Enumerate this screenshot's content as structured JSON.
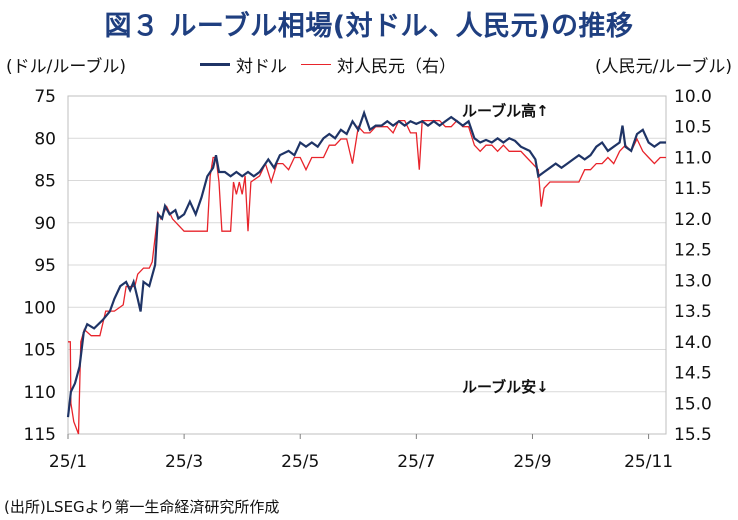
{
  "title": "図３ ルーブル相場(対ドル、人民元)の推移",
  "source": "(出所)LSEGより第一生命経済研究所作成",
  "chart_data": {
    "type": "line",
    "title": "図３ ルーブル相場(対ドル、人民元)の推移",
    "left_axis_label": "(ドル/ルーブル)",
    "right_axis_label": "(人民元/ルーブル)",
    "left_axis": {
      "min": 75,
      "max": 115,
      "step": 5,
      "inverted": true,
      "ticks": [
        "75",
        "80",
        "85",
        "90",
        "95",
        "100",
        "105",
        "110",
        "115"
      ]
    },
    "right_axis": {
      "min": 10.0,
      "max": 15.5,
      "step": 0.5,
      "inverted": true,
      "ticks": [
        "10.0",
        "10.5",
        "11.0",
        "11.5",
        "12.0",
        "12.5",
        "13.0",
        "13.5",
        "14.0",
        "14.5",
        "15.0",
        "15.5"
      ]
    },
    "x_axis": {
      "min": 0,
      "max": 10.3,
      "ticks": [
        {
          "pos": 0,
          "label": "25/1"
        },
        {
          "pos": 2,
          "label": "25/3"
        },
        {
          "pos": 4,
          "label": "25/5"
        },
        {
          "pos": 6,
          "label": "25/7"
        },
        {
          "pos": 8,
          "label": "25/9"
        },
        {
          "pos": 10,
          "label": "25/11"
        }
      ]
    },
    "annotations": [
      {
        "text": "ルーブル高↑"
      },
      {
        "text": "ルーブル安↓"
      }
    ],
    "series": [
      {
        "name": "対ドル",
        "axis": "left",
        "color": "#1f3466",
        "points": [
          [
            0.0,
            113
          ],
          [
            0.05,
            110
          ],
          [
            0.12,
            109
          ],
          [
            0.2,
            107
          ],
          [
            0.27,
            103
          ],
          [
            0.33,
            102
          ],
          [
            0.45,
            102.5
          ],
          [
            0.6,
            101.5
          ],
          [
            0.72,
            100.5
          ],
          [
            0.8,
            99
          ],
          [
            0.9,
            97.5
          ],
          [
            1.0,
            97
          ],
          [
            1.07,
            98
          ],
          [
            1.13,
            97
          ],
          [
            1.2,
            99
          ],
          [
            1.25,
            100.5
          ],
          [
            1.3,
            97
          ],
          [
            1.4,
            97.5
          ],
          [
            1.5,
            95
          ],
          [
            1.55,
            89
          ],
          [
            1.62,
            89.5
          ],
          [
            1.67,
            88
          ],
          [
            1.75,
            89
          ],
          [
            1.85,
            88.5
          ],
          [
            1.9,
            89.5
          ],
          [
            2.0,
            89
          ],
          [
            2.1,
            87.5
          ],
          [
            2.2,
            89
          ],
          [
            2.3,
            87
          ],
          [
            2.4,
            84.5
          ],
          [
            2.5,
            83.5
          ],
          [
            2.55,
            82
          ],
          [
            2.6,
            84
          ],
          [
            2.7,
            84
          ],
          [
            2.8,
            84.5
          ],
          [
            2.9,
            84
          ],
          [
            3.0,
            84.5
          ],
          [
            3.1,
            84
          ],
          [
            3.2,
            84.5
          ],
          [
            3.3,
            84
          ],
          [
            3.45,
            82.5
          ],
          [
            3.55,
            83.5
          ],
          [
            3.65,
            82
          ],
          [
            3.8,
            81.5
          ],
          [
            3.9,
            82
          ],
          [
            4.0,
            80.5
          ],
          [
            4.1,
            81
          ],
          [
            4.2,
            80.5
          ],
          [
            4.3,
            81
          ],
          [
            4.4,
            80
          ],
          [
            4.5,
            79.5
          ],
          [
            4.6,
            80
          ],
          [
            4.7,
            79
          ],
          [
            4.8,
            79.5
          ],
          [
            4.9,
            78
          ],
          [
            5.0,
            79
          ],
          [
            5.1,
            77
          ],
          [
            5.2,
            79
          ],
          [
            5.3,
            78.5
          ],
          [
            5.4,
            78.5
          ],
          [
            5.5,
            78
          ],
          [
            5.6,
            78.5
          ],
          [
            5.7,
            78
          ],
          [
            5.8,
            78.5
          ],
          [
            5.9,
            78
          ],
          [
            6.0,
            78.3
          ],
          [
            6.1,
            78
          ],
          [
            6.2,
            78.5
          ],
          [
            6.3,
            78
          ],
          [
            6.4,
            78.5
          ],
          [
            6.5,
            78
          ],
          [
            6.6,
            77.5
          ],
          [
            6.7,
            78
          ],
          [
            6.8,
            78.5
          ],
          [
            6.9,
            78
          ],
          [
            7.0,
            80
          ],
          [
            7.1,
            80.5
          ],
          [
            7.2,
            80.2
          ],
          [
            7.3,
            80.5
          ],
          [
            7.4,
            80
          ],
          [
            7.5,
            80.5
          ],
          [
            7.6,
            80
          ],
          [
            7.7,
            80.3
          ],
          [
            7.8,
            81
          ],
          [
            7.95,
            81.5
          ],
          [
            8.05,
            82.5
          ],
          [
            8.1,
            84.5
          ],
          [
            8.2,
            84
          ],
          [
            8.3,
            83.5
          ],
          [
            8.4,
            83
          ],
          [
            8.5,
            83.5
          ],
          [
            8.6,
            83
          ],
          [
            8.7,
            82.5
          ],
          [
            8.8,
            82
          ],
          [
            8.9,
            82.5
          ],
          [
            9.0,
            82
          ],
          [
            9.1,
            81
          ],
          [
            9.2,
            80.5
          ],
          [
            9.3,
            81.5
          ],
          [
            9.4,
            81
          ],
          [
            9.5,
            80.5
          ],
          [
            9.55,
            78.5
          ],
          [
            9.6,
            81
          ],
          [
            9.7,
            81.5
          ],
          [
            9.8,
            79.5
          ],
          [
            9.9,
            79
          ],
          [
            10.0,
            80.5
          ],
          [
            10.1,
            81
          ],
          [
            10.2,
            80.5
          ],
          [
            10.3,
            80.5
          ]
        ]
      },
      {
        "name": "対人民元（右）",
        "axis": "right",
        "color": "#e8242b",
        "points": [
          [
            0.0,
            14.0
          ],
          [
            0.04,
            14.0
          ],
          [
            0.05,
            15.0
          ],
          [
            0.1,
            15.3
          ],
          [
            0.18,
            15.5
          ],
          [
            0.22,
            14.0
          ],
          [
            0.28,
            13.8
          ],
          [
            0.4,
            13.9
          ],
          [
            0.55,
            13.9
          ],
          [
            0.65,
            13.5
          ],
          [
            0.8,
            13.5
          ],
          [
            0.95,
            13.4
          ],
          [
            1.0,
            13.1
          ],
          [
            1.05,
            13.1
          ],
          [
            1.15,
            13.1
          ],
          [
            1.2,
            12.9
          ],
          [
            1.3,
            12.8
          ],
          [
            1.4,
            12.8
          ],
          [
            1.45,
            12.7
          ],
          [
            1.5,
            12.3
          ],
          [
            1.55,
            11.9
          ],
          [
            1.6,
            12.0
          ],
          [
            1.7,
            11.8
          ],
          [
            1.8,
            12.0
          ],
          [
            1.9,
            12.1
          ],
          [
            2.0,
            12.2
          ],
          [
            2.1,
            12.2
          ],
          [
            2.2,
            12.2
          ],
          [
            2.3,
            12.2
          ],
          [
            2.4,
            12.2
          ],
          [
            2.45,
            11.3
          ],
          [
            2.5,
            11.0
          ],
          [
            2.55,
            11.0
          ],
          [
            2.6,
            11.4
          ],
          [
            2.65,
            12.2
          ],
          [
            2.7,
            12.2
          ],
          [
            2.8,
            12.2
          ],
          [
            2.85,
            11.4
          ],
          [
            2.9,
            11.6
          ],
          [
            2.95,
            11.4
          ],
          [
            3.0,
            11.6
          ],
          [
            3.05,
            11.3
          ],
          [
            3.1,
            12.2
          ],
          [
            3.15,
            11.4
          ],
          [
            3.3,
            11.3
          ],
          [
            3.4,
            11.1
          ],
          [
            3.5,
            11.4
          ],
          [
            3.6,
            11.1
          ],
          [
            3.7,
            11.1
          ],
          [
            3.8,
            11.2
          ],
          [
            3.9,
            11.0
          ],
          [
            4.0,
            11.0
          ],
          [
            4.1,
            11.2
          ],
          [
            4.2,
            11.0
          ],
          [
            4.3,
            11.0
          ],
          [
            4.4,
            11.0
          ],
          [
            4.5,
            10.8
          ],
          [
            4.6,
            10.8
          ],
          [
            4.7,
            10.7
          ],
          [
            4.8,
            10.7
          ],
          [
            4.9,
            11.1
          ],
          [
            5.0,
            10.5
          ],
          [
            5.1,
            10.6
          ],
          [
            5.2,
            10.6
          ],
          [
            5.3,
            10.5
          ],
          [
            5.4,
            10.5
          ],
          [
            5.5,
            10.5
          ],
          [
            5.6,
            10.6
          ],
          [
            5.7,
            10.4
          ],
          [
            5.8,
            10.4
          ],
          [
            5.9,
            10.6
          ],
          [
            6.0,
            10.6
          ],
          [
            6.05,
            11.2
          ],
          [
            6.1,
            10.4
          ],
          [
            6.2,
            10.4
          ],
          [
            6.3,
            10.4
          ],
          [
            6.4,
            10.4
          ],
          [
            6.5,
            10.5
          ],
          [
            6.6,
            10.5
          ],
          [
            6.7,
            10.4
          ],
          [
            6.8,
            10.5
          ],
          [
            6.9,
            10.5
          ],
          [
            7.0,
            10.8
          ],
          [
            7.1,
            10.9
          ],
          [
            7.2,
            10.8
          ],
          [
            7.3,
            10.8
          ],
          [
            7.4,
            10.9
          ],
          [
            7.5,
            10.8
          ],
          [
            7.6,
            10.9
          ],
          [
            7.7,
            10.9
          ],
          [
            7.8,
            10.9
          ],
          [
            7.9,
            11.0
          ],
          [
            8.0,
            11.1
          ],
          [
            8.1,
            11.2
          ],
          [
            8.15,
            11.8
          ],
          [
            8.2,
            11.5
          ],
          [
            8.3,
            11.4
          ],
          [
            8.4,
            11.4
          ],
          [
            8.5,
            11.4
          ],
          [
            8.6,
            11.4
          ],
          [
            8.7,
            11.4
          ],
          [
            8.8,
            11.4
          ],
          [
            8.9,
            11.2
          ],
          [
            9.0,
            11.2
          ],
          [
            9.1,
            11.1
          ],
          [
            9.2,
            11.1
          ],
          [
            9.3,
            11.0
          ],
          [
            9.4,
            11.1
          ],
          [
            9.5,
            10.9
          ],
          [
            9.6,
            10.8
          ],
          [
            9.7,
            10.9
          ],
          [
            9.8,
            10.7
          ],
          [
            9.9,
            10.9
          ],
          [
            10.0,
            11.0
          ],
          [
            10.1,
            11.1
          ],
          [
            10.2,
            11.0
          ],
          [
            10.3,
            11.0
          ]
        ]
      }
    ]
  }
}
